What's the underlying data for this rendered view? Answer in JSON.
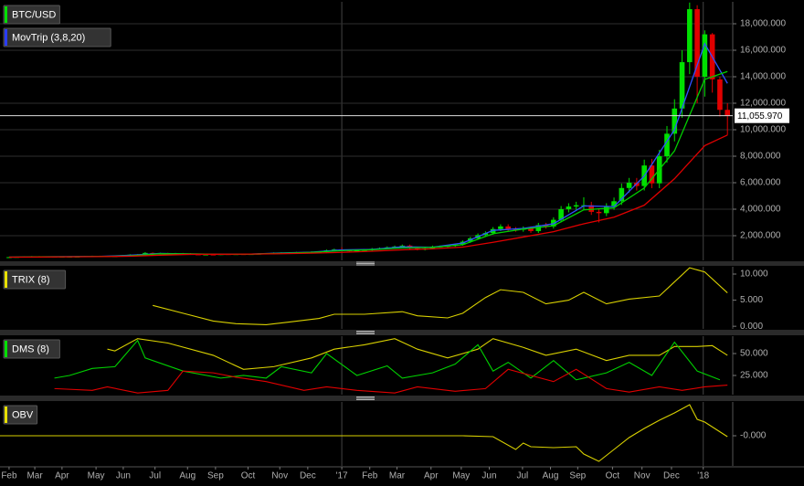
{
  "chart_data": [
    {
      "type": "candlestick",
      "name": "BTC/USD",
      "legend_color": "#00e000",
      "up_color": "#00e000",
      "down_color": "#e00000",
      "grid": true,
      "open": [
        370,
        380,
        400,
        420,
        435,
        410,
        415,
        410,
        415,
        420,
        425,
        450,
        460,
        455,
        445,
        450,
        525,
        570,
        580,
        700,
        660,
        670,
        650,
        660,
        655,
        590,
        580,
        580,
        575,
        610,
        605,
        610,
        605,
        615,
        640,
        655,
        700,
        710,
        700,
        740,
        735,
        770,
        780,
        900,
        960,
        900,
        820,
        920,
        920,
        1010,
        1050,
        1120,
        1180,
        1250,
        1050,
        950,
        1040,
        1180,
        1190,
        1230,
        1330,
        1550,
        1800,
        2050,
        2200,
        2500,
        2700,
        2500,
        2450,
        2550,
        2350,
        2800,
        2700,
        3200,
        4000,
        4200,
        4300,
        4300,
        3800,
        3700,
        4200,
        4600,
        5600,
        6000,
        5750,
        7300,
        5950,
        8000,
        9700,
        11600,
        15100,
        19100,
        14000,
        17200,
        13800,
        11500
      ],
      "high": [
        400,
        420,
        440,
        460,
        460,
        440,
        440,
        440,
        440,
        450,
        470,
        490,
        490,
        480,
        470,
        550,
        600,
        610,
        760,
        740,
        710,
        710,
        700,
        700,
        690,
        620,
        610,
        610,
        650,
        640,
        640,
        640,
        650,
        680,
        690,
        740,
        750,
        750,
        780,
        780,
        820,
        830,
        950,
        1020,
        1130,
        950,
        970,
        970,
        1070,
        1110,
        1190,
        1250,
        1330,
        1330,
        1110,
        1100,
        1250,
        1260,
        1300,
        1410,
        1640,
        1910,
        2170,
        2330,
        2650,
        2860,
        2860,
        2650,
        2700,
        2700,
        2970,
        2970,
        3390,
        4240,
        4450,
        4560,
        4900,
        4560,
        4030,
        4450,
        4880,
        5940,
        6360,
        6360,
        7740,
        7800,
        8480,
        10280,
        12300,
        16000,
        19600,
        19400,
        17500,
        17300,
        14000,
        12000
      ],
      "low": [
        350,
        360,
        380,
        400,
        390,
        390,
        390,
        390,
        390,
        400,
        400,
        420,
        430,
        420,
        420,
        430,
        500,
        540,
        550,
        620,
        620,
        610,
        610,
        620,
        550,
        550,
        550,
        540,
        540,
        570,
        570,
        570,
        570,
        580,
        600,
        620,
        660,
        660,
        660,
        690,
        690,
        720,
        730,
        850,
        800,
        750,
        770,
        860,
        860,
        950,
        990,
        1050,
        1110,
        990,
        890,
        890,
        980,
        1110,
        1120,
        1160,
        1250,
        1460,
        1690,
        1930,
        2070,
        2350,
        2350,
        2300,
        2300,
        2210,
        2210,
        2540,
        2540,
        3010,
        3760,
        3950,
        3950,
        3570,
        3000,
        3480,
        3950,
        4320,
        5260,
        5410,
        5410,
        5590,
        5590,
        7520,
        9120,
        10900,
        14200,
        12000,
        12500,
        12800,
        11000,
        9600
      ],
      "close": [
        380,
        400,
        420,
        435,
        410,
        415,
        410,
        415,
        420,
        425,
        450,
        460,
        455,
        445,
        450,
        525,
        570,
        580,
        700,
        660,
        670,
        650,
        660,
        655,
        590,
        580,
        580,
        575,
        610,
        605,
        610,
        605,
        615,
        640,
        655,
        700,
        710,
        700,
        740,
        735,
        770,
        780,
        900,
        960,
        900,
        820,
        920,
        920,
        1010,
        1050,
        1120,
        1180,
        1250,
        1050,
        950,
        1040,
        1180,
        1190,
        1230,
        1330,
        1550,
        1800,
        2050,
        2200,
        2500,
        2700,
        2500,
        2450,
        2550,
        2350,
        2800,
        2700,
        3200,
        4000,
        4200,
        4300,
        4300,
        3800,
        3700,
        4200,
        4600,
        5600,
        6000,
        5750,
        7300,
        5950,
        8000,
        9700,
        11600,
        15100,
        19100,
        14000,
        17200,
        13800,
        11500,
        11056
      ],
      "overlay": {
        "name": "MovTrip (3,8,20)",
        "legend_color": "#2a3cff",
        "x": [
          0,
          4,
          8,
          12,
          16,
          20,
          24,
          28,
          32,
          36,
          40,
          44,
          48,
          52,
          56,
          60,
          64,
          68,
          72,
          76,
          80,
          84,
          88,
          92,
          95
        ],
        "series": [
          {
            "color": "#3050ff",
            "values": [
              380,
              405,
              420,
              440,
              520,
              660,
              620,
              600,
              610,
              700,
              760,
              930,
              960,
              1160,
              1130,
              1450,
              2400,
              2550,
              2900,
              4250,
              4200,
              6500,
              10000,
              16500,
              13500
            ]
          },
          {
            "color": "#00d000",
            "values": [
              380,
              400,
              415,
              430,
              480,
              640,
              630,
              590,
              608,
              670,
              740,
              870,
              940,
              1080,
              1120,
              1320,
              2150,
              2500,
              2750,
              3950,
              4100,
              5600,
              8400,
              13800,
              14400
            ]
          },
          {
            "color": "#e00000",
            "values": [
              380,
              390,
              405,
              420,
              450,
              530,
              590,
              600,
              610,
              640,
              680,
              740,
              830,
              930,
              1010,
              1140,
              1500,
              1900,
              2300,
              2900,
              3400,
              4300,
              6300,
              8800,
              9600
            ]
          }
        ]
      },
      "last_value": {
        "value": 11055.97,
        "label": "11,055.970"
      },
      "ylim": [
        138,
        19655
      ],
      "yticks": [
        {
          "value": 2000,
          "label": "2,000.000"
        },
        {
          "value": 4000,
          "label": "4,000.000"
        },
        {
          "value": 6000,
          "label": "6,000.000"
        },
        {
          "value": 8000,
          "label": "8,000.000"
        },
        {
          "value": 10000,
          "label": "10,000.000"
        },
        {
          "value": 12000,
          "label": "12,000.000"
        },
        {
          "value": 14000,
          "label": "14,000.000"
        },
        {
          "value": 16000,
          "label": "16,000.000"
        },
        {
          "value": 18000,
          "label": "18,000.000"
        }
      ],
      "xlim": [
        -1.2,
        95.7
      ],
      "xticks": [
        {
          "value": 0,
          "label": "Feb"
        },
        {
          "value": 3.4,
          "label": "Mar"
        },
        {
          "value": 7,
          "label": "Apr"
        },
        {
          "value": 11.5,
          "label": "May"
        },
        {
          "value": 15.1,
          "label": "Jun"
        },
        {
          "value": 19.3,
          "label": "Jul"
        },
        {
          "value": 23.6,
          "label": "Aug"
        },
        {
          "value": 27.3,
          "label": "Sep"
        },
        {
          "value": 31.6,
          "label": "Oct"
        },
        {
          "value": 35.8,
          "label": "Nov"
        },
        {
          "value": 39.5,
          "label": "Dec"
        },
        {
          "value": 44,
          "label": "'17",
          "major": true
        },
        {
          "value": 47.7,
          "label": "Feb"
        },
        {
          "value": 51.3,
          "label": "Mar"
        },
        {
          "value": 55.8,
          "label": "Apr"
        },
        {
          "value": 59.8,
          "label": "May"
        },
        {
          "value": 63.5,
          "label": "Jun"
        },
        {
          "value": 67.9,
          "label": "Jul"
        },
        {
          "value": 71.6,
          "label": "Aug"
        },
        {
          "value": 75.2,
          "label": "Sep"
        },
        {
          "value": 79.8,
          "label": "Oct"
        },
        {
          "value": 83.7,
          "label": "Nov"
        },
        {
          "value": 87.6,
          "label": "Dec"
        },
        {
          "value": 91.8,
          "label": "'18",
          "major": true
        }
      ]
    },
    {
      "type": "line",
      "name": "TRIX (8)",
      "legend_color": "#e8e000",
      "series": [
        {
          "color": "#d8d000",
          "x": [
            19,
            23,
            27,
            30,
            34,
            37,
            41,
            43,
            47,
            52,
            54,
            58,
            60,
            63,
            65,
            68,
            71,
            74,
            76,
            79,
            82,
            86,
            88,
            90,
            92,
            95
          ],
          "values": [
            4.0,
            2.5,
            1.0,
            0.5,
            0.3,
            0.8,
            1.5,
            2.3,
            2.3,
            2.8,
            2.0,
            1.6,
            2.5,
            5.5,
            7.0,
            6.5,
            4.3,
            5.0,
            6.5,
            4.3,
            5.2,
            5.8,
            8.5,
            11.2,
            10.4,
            6.4
          ]
        }
      ],
      "ylim": [
        -0.5,
        11.4
      ],
      "yticks": [
        {
          "value": 0,
          "label": "0.000"
        },
        {
          "value": 5,
          "label": "5.000"
        },
        {
          "value": 10,
          "label": "10.000"
        }
      ]
    },
    {
      "type": "line",
      "name": "DMS (8)",
      "legend_color": "#00e000",
      "series": [
        {
          "color": "#d8d000",
          "x": [
            13,
            14,
            17,
            21,
            27,
            31,
            35,
            40,
            43,
            47,
            51,
            54,
            58,
            62,
            64,
            68,
            71,
            75,
            79,
            82,
            86,
            88,
            91,
            93,
            95
          ],
          "values": [
            55,
            53,
            67,
            62,
            48,
            32,
            35,
            45,
            55,
            60,
            67,
            55,
            45,
            55,
            67,
            57,
            48,
            55,
            42,
            48,
            48,
            58,
            58,
            59,
            48
          ]
        },
        {
          "color": "#00d000",
          "x": [
            6,
            8,
            11,
            14,
            17,
            18,
            23,
            28,
            31,
            34,
            36,
            40,
            42,
            46,
            50,
            52,
            56,
            59,
            62,
            64,
            66,
            69,
            72,
            75,
            79,
            82,
            85,
            88,
            91,
            94
          ],
          "values": [
            22,
            25,
            33,
            35,
            65,
            45,
            30,
            22,
            25,
            22,
            35,
            28,
            50,
            25,
            36,
            22,
            28,
            38,
            60,
            30,
            40,
            22,
            42,
            20,
            28,
            40,
            25,
            63,
            30,
            20
          ]
        },
        {
          "color": "#e00000",
          "x": [
            6,
            11,
            13,
            17,
            21,
            23,
            27,
            30,
            34,
            39,
            42,
            46,
            51,
            54,
            59,
            63,
            66,
            69,
            72,
            75,
            79,
            82,
            86,
            89,
            92,
            95
          ],
          "values": [
            10,
            8,
            12,
            5,
            8,
            30,
            28,
            23,
            18,
            8,
            12,
            8,
            5,
            12,
            7,
            10,
            32,
            25,
            18,
            32,
            10,
            6,
            12,
            8,
            12,
            14
          ]
        }
      ],
      "ylim": [
        3.1,
        69.8
      ],
      "yticks": [
        {
          "value": 25,
          "label": "25.000"
        },
        {
          "value": 50,
          "label": "50.000"
        }
      ]
    },
    {
      "type": "line",
      "name": "OBV",
      "legend_color": "#e8e000",
      "series": [
        {
          "color": "#d8d000",
          "x": [
            -1.2,
            20,
            40,
            60,
            64,
            67,
            68,
            69,
            72,
            75,
            76,
            78,
            80,
            82,
            84,
            86,
            88,
            90,
            91,
            92,
            95
          ],
          "values": [
            0,
            0,
            0,
            0,
            -1,
            -15,
            -8,
            -12,
            -13,
            -12,
            -20,
            -28,
            -15,
            -2,
            8,
            17,
            25,
            34,
            18,
            15,
            -1
          ]
        }
      ],
      "ylim": [
        -33,
        37
      ],
      "yticks": [
        {
          "value": 0,
          "label": "-0.000"
        }
      ]
    }
  ]
}
